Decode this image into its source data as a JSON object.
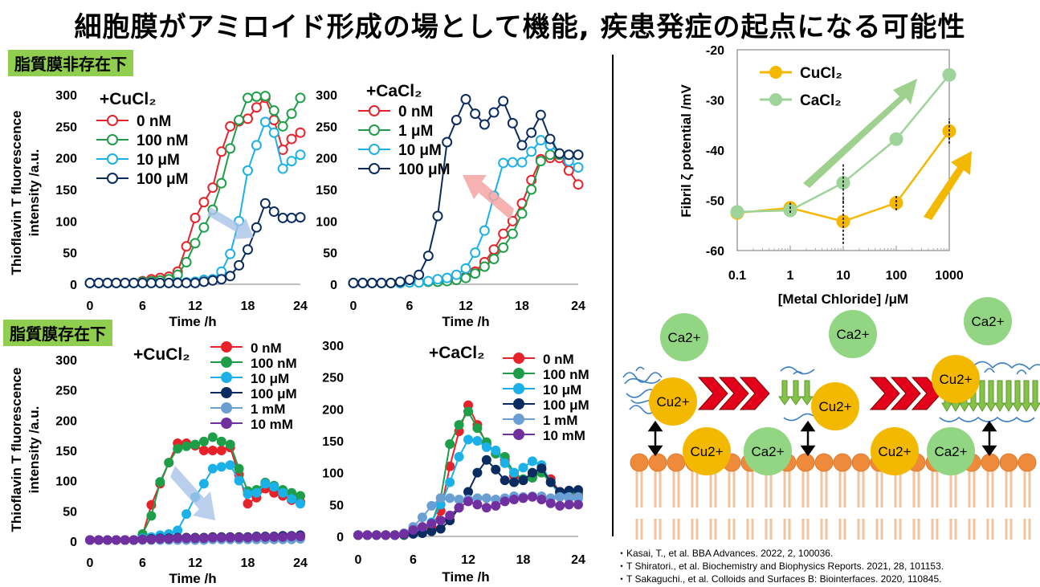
{
  "title": "細胞膜がアミロイド形成の場として機能, 疾患発症の起点になる可能性",
  "labels": {
    "no_membrane": "脂質膜非存在下",
    "with_membrane": "脂質膜存在下"
  },
  "colors": {
    "red": "#e8222a",
    "green": "#1f9e4a",
    "lightblue": "#1bb1e8",
    "navy": "#0b2c61",
    "steel": "#6a9fd4",
    "purple": "#7030a0",
    "orange": "#f5b800",
    "lightgreen": "#9ed49a"
  },
  "chart_data": [
    {
      "id": "a",
      "type": "line",
      "markers": "open",
      "title": "+CuCl₂",
      "ylabel": "Thioflavin T fluorescence intensity /a.u.",
      "xlabel": "Time /h",
      "xlim": [
        0,
        24
      ],
      "ylim": [
        0,
        300
      ],
      "xticks": [
        "0",
        "6",
        "12",
        "18",
        "24"
      ],
      "yticks": [
        "0",
        "50",
        "100",
        "150",
        "200",
        "250",
        "300"
      ],
      "x": [
        0,
        1,
        2,
        3,
        4,
        5,
        6,
        7,
        8,
        9,
        10,
        11,
        12,
        13,
        14,
        15,
        16,
        17,
        18,
        19,
        20,
        21,
        22,
        23,
        24
      ],
      "series": [
        {
          "name": "0 nM",
          "color": "red",
          "values": [
            2,
            2,
            2,
            2,
            2,
            2,
            5,
            8,
            10,
            12,
            20,
            60,
            105,
            130,
            153,
            210,
            250,
            258,
            262,
            280,
            295,
            260,
            213,
            230,
            240
          ]
        },
        {
          "name": "100 nM",
          "color": "green",
          "values": [
            2,
            2,
            2,
            2,
            2,
            2,
            4,
            5,
            6,
            8,
            15,
            35,
            65,
            90,
            118,
            160,
            215,
            260,
            295,
            297,
            298,
            275,
            250,
            270,
            295
          ]
        },
        {
          "name": "10 μM",
          "color": "lightblue",
          "values": [
            2,
            2,
            2,
            2,
            2,
            2,
            2,
            2,
            2,
            2,
            3,
            3,
            4,
            7,
            8,
            20,
            48,
            100,
            180,
            220,
            257,
            240,
            183,
            195,
            205
          ]
        },
        {
          "name": "100 μM",
          "color": "navy",
          "values": [
            2,
            2,
            2,
            2,
            2,
            2,
            2,
            2,
            2,
            2,
            2,
            2,
            2,
            4,
            6,
            8,
            13,
            30,
            55,
            90,
            128,
            115,
            105,
            105,
            106
          ]
        }
      ]
    },
    {
      "id": "b",
      "type": "line",
      "markers": "open",
      "title": "+CaCl₂",
      "xlabel": "Time /h",
      "xlim": [
        0,
        24
      ],
      "ylim": [
        0,
        300
      ],
      "xticks": [
        "0",
        "6",
        "12",
        "18",
        "24"
      ],
      "yticks": [
        "0",
        "50",
        "100",
        "150",
        "200",
        "250",
        "300"
      ],
      "x": [
        0,
        1,
        2,
        3,
        4,
        5,
        6,
        7,
        8,
        9,
        10,
        11,
        12,
        13,
        14,
        15,
        16,
        17,
        18,
        19,
        20,
        21,
        22,
        23,
        24
      ],
      "series": [
        {
          "name": "0 nM",
          "color": "red",
          "values": [
            2,
            2,
            2,
            2,
            2,
            2,
            3,
            3,
            4,
            5,
            6,
            8,
            12,
            20,
            35,
            55,
            80,
            100,
            128,
            165,
            198,
            200,
            200,
            180,
            158
          ]
        },
        {
          "name": "1 μM",
          "color": "green",
          "values": [
            2,
            2,
            2,
            2,
            2,
            2,
            3,
            3,
            4,
            4,
            5,
            7,
            10,
            17,
            28,
            40,
            58,
            80,
            112,
            150,
            195,
            205,
            205,
            205,
            205
          ]
        },
        {
          "name": "10 μM",
          "color": "lightblue",
          "values": [
            2,
            2,
            2,
            2,
            2,
            2,
            3,
            3,
            5,
            8,
            10,
            15,
            25,
            50,
            85,
            140,
            192,
            193,
            193,
            210,
            228,
            220,
            207,
            195,
            185
          ]
        },
        {
          "name": "100 μM",
          "color": "navy",
          "values": [
            2,
            2,
            2,
            2,
            2,
            4,
            7,
            15,
            45,
            108,
            225,
            260,
            293,
            270,
            253,
            272,
            290,
            255,
            220,
            240,
            268,
            230,
            207,
            205,
            205
          ]
        }
      ]
    },
    {
      "id": "c",
      "type": "line",
      "markers": "filled",
      "title": "+CuCl₂",
      "ylabel": "Thioflavin T fluorescence intensity /a.u.",
      "xlabel": "Time /h",
      "xlim": [
        0,
        24
      ],
      "ylim": [
        0,
        300
      ],
      "xticks": [
        "0",
        "6",
        "12",
        "18",
        "24"
      ],
      "yticks": [
        "0",
        "50",
        "100",
        "150",
        "200",
        "250",
        "300"
      ],
      "x": [
        0,
        1,
        2,
        3,
        4,
        5,
        6,
        7,
        8,
        9,
        10,
        11,
        12,
        13,
        14,
        15,
        16,
        17,
        18,
        19,
        20,
        21,
        22,
        23,
        24
      ],
      "series": [
        {
          "name": "0 nM",
          "color": "red",
          "values": [
            2,
            2,
            2,
            2,
            2,
            2,
            10,
            60,
            95,
            130,
            162,
            162,
            158,
            150,
            150,
            150,
            155,
            110,
            62,
            72,
            87,
            80,
            75,
            68,
            65
          ]
        },
        {
          "name": "100 nM",
          "color": "green",
          "values": [
            2,
            2,
            2,
            2,
            2,
            2,
            12,
            42,
            98,
            130,
            153,
            157,
            160,
            165,
            172,
            165,
            160,
            120,
            83,
            85,
            97,
            92,
            85,
            80,
            75
          ]
        },
        {
          "name": "10 μM",
          "color": "lightblue",
          "values": [
            2,
            2,
            2,
            2,
            2,
            2,
            5,
            7,
            10,
            12,
            18,
            45,
            73,
            95,
            120,
            123,
            126,
            100,
            78,
            80,
            95,
            90,
            80,
            70,
            62
          ]
        },
        {
          "name": "100 μM",
          "color": "navy",
          "values": [
            2,
            2,
            2,
            2,
            2,
            2,
            3,
            4,
            5,
            5,
            6,
            6,
            6,
            6,
            7,
            7,
            7,
            7,
            7,
            8,
            8,
            8,
            9,
            9,
            10
          ]
        },
        {
          "name": "1 mM",
          "color": "steel",
          "values": [
            2,
            2,
            2,
            2,
            2,
            2,
            2,
            2,
            2,
            2,
            2,
            2,
            2,
            2,
            3,
            3,
            3,
            3,
            3,
            3,
            3,
            3,
            3,
            3,
            4
          ]
        },
        {
          "name": "10 mM",
          "color": "purple",
          "values": [
            2,
            2,
            2,
            2,
            2,
            2,
            3,
            3,
            4,
            4,
            5,
            5,
            5,
            5,
            6,
            6,
            6,
            6,
            6,
            7,
            7,
            7,
            7,
            8,
            8
          ]
        }
      ]
    },
    {
      "id": "d",
      "type": "line",
      "markers": "filled",
      "title": "+CaCl₂",
      "xlabel": "Time /h",
      "xlim": [
        0,
        24
      ],
      "ylim": [
        0,
        300
      ],
      "xticks": [
        "0",
        "6",
        "12",
        "18",
        "24"
      ],
      "yticks": [
        "0",
        "50",
        "100",
        "150",
        "200",
        "250",
        "300"
      ],
      "x": [
        0,
        1,
        2,
        3,
        4,
        5,
        6,
        7,
        8,
        9,
        10,
        11,
        12,
        13,
        14,
        15,
        16,
        17,
        18,
        19,
        20,
        21,
        22,
        23,
        24
      ],
      "series": [
        {
          "name": "0 nM",
          "color": "red",
          "values": [
            2,
            2,
            2,
            2,
            2,
            2,
            5,
            8,
            15,
            40,
            110,
            165,
            206,
            175,
            145,
            130,
            120,
            95,
            88,
            95,
            105,
            90,
            70,
            68,
            65
          ]
        },
        {
          "name": "100 nM",
          "color": "green",
          "values": [
            2,
            2,
            2,
            2,
            2,
            2,
            5,
            10,
            20,
            60,
            145,
            175,
            196,
            170,
            148,
            130,
            125,
            100,
            90,
            92,
            100,
            85,
            65,
            68,
            70
          ]
        },
        {
          "name": "10 μM",
          "color": "lightblue",
          "values": [
            2,
            2,
            2,
            2,
            2,
            3,
            5,
            10,
            22,
            50,
            85,
            125,
            152,
            150,
            140,
            135,
            115,
            100,
            108,
            118,
            112,
            85,
            65,
            60,
            60
          ]
        },
        {
          "name": "100 μM",
          "color": "navy",
          "values": [
            2,
            2,
            2,
            2,
            2,
            3,
            4,
            5,
            8,
            12,
            25,
            45,
            70,
            100,
            120,
            105,
            88,
            85,
            88,
            100,
            107,
            85,
            70,
            72,
            73
          ]
        },
        {
          "name": "1 mM",
          "color": "steel",
          "values": [
            2,
            2,
            2,
            2,
            2,
            5,
            15,
            30,
            48,
            60,
            60,
            58,
            58,
            60,
            60,
            58,
            60,
            63,
            62,
            63,
            63,
            60,
            62,
            62,
            62
          ]
        },
        {
          "name": "10 mM",
          "color": "purple",
          "values": [
            2,
            2,
            2,
            2,
            2,
            4,
            10,
            15,
            20,
            25,
            33,
            45,
            55,
            50,
            45,
            48,
            55,
            58,
            60,
            62,
            58,
            52,
            48,
            50,
            50
          ]
        }
      ]
    },
    {
      "id": "e",
      "type": "line",
      "markers": "filled",
      "title": "",
      "ylabel": "Fibril ζ potential /mV",
      "xlabel": "[Metal Chloride] /μM",
      "xscale": "log",
      "xlim": [
        0.1,
        1000
      ],
      "ylim": [
        -60,
        -20
      ],
      "xticks": [
        "0.1",
        "1",
        "10",
        "100",
        "1000"
      ],
      "yticks": [
        "-20",
        "-30",
        "-40",
        "-50",
        "-60"
      ],
      "x": [
        0.1,
        1,
        10,
        100,
        1000
      ],
      "series": [
        {
          "name": "CuCl₂",
          "color": "orange",
          "values": [
            -52.5,
            -51.5,
            -54.2,
            -50.5,
            -36.2
          ]
        },
        {
          "name": "CaCl₂",
          "color": "lightgreen",
          "values": [
            -52.3,
            -52.0,
            -46.5,
            -37.8,
            -25.0
          ]
        }
      ]
    }
  ],
  "diagram": {
    "ions": [
      "Ca2+",
      "Ca2+",
      "Ca2+",
      "Cu2+",
      "Cu2+",
      "Cu2+",
      "Cu2+",
      "Ca2+",
      "Cu2+",
      "Ca2+"
    ]
  },
  "references": [
    "・Kasai, T., et al. BBA Advances. 2022, 2, 100036.",
    "・T Shiratori., et al. Biochemistry and Biophysics Reports. 2021, 28, 101153.",
    "・T Sakaguchi., et al. Colloids and Surfaces B: Biointerfaces. 2020, 110845."
  ]
}
